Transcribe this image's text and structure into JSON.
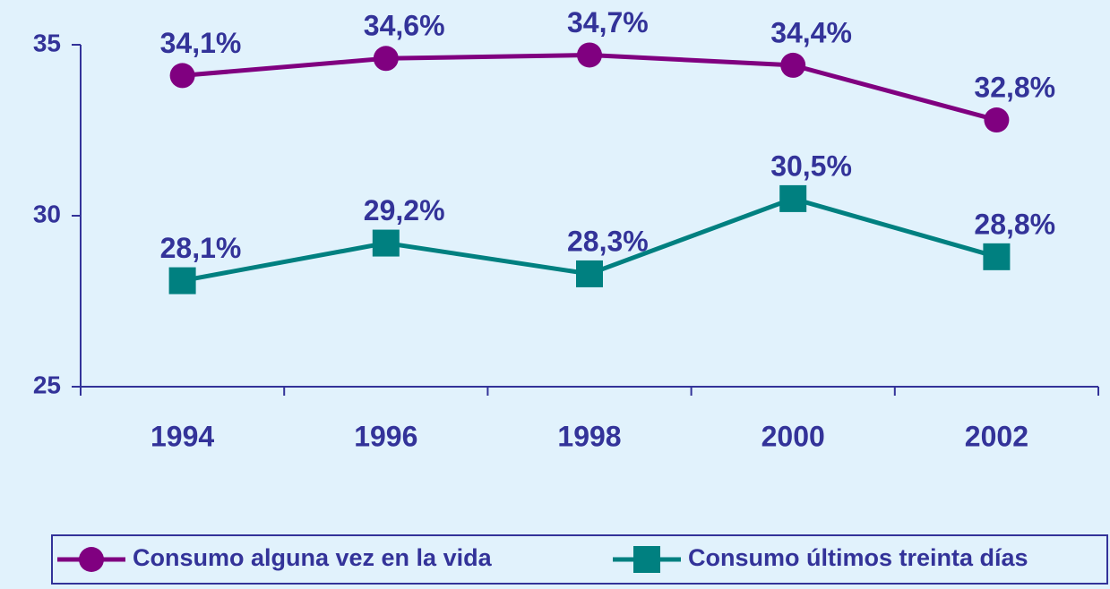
{
  "chart_data": {
    "type": "line",
    "categories": [
      "1994",
      "1996",
      "1998",
      "2000",
      "2002"
    ],
    "series": [
      {
        "name": "Consumo alguna vez en la vida",
        "color": "#800080",
        "marker": "circle",
        "values": [
          34.1,
          34.6,
          34.7,
          34.4,
          32.8
        ],
        "value_labels": [
          "34,1%",
          "34,6%",
          "34,7%",
          "34,4%",
          "32,8%"
        ]
      },
      {
        "name": "Consumo últimos treinta días",
        "color": "#008080",
        "marker": "square",
        "values": [
          28.1,
          29.2,
          28.3,
          30.5,
          28.8
        ],
        "value_labels": [
          "28,1%",
          "29,2%",
          "28,3%",
          "30,5%",
          "28,8%"
        ]
      }
    ],
    "ylim": [
      25,
      35
    ],
    "yticks": [
      25,
      30,
      35
    ],
    "grid": false,
    "legend": "bottom"
  }
}
